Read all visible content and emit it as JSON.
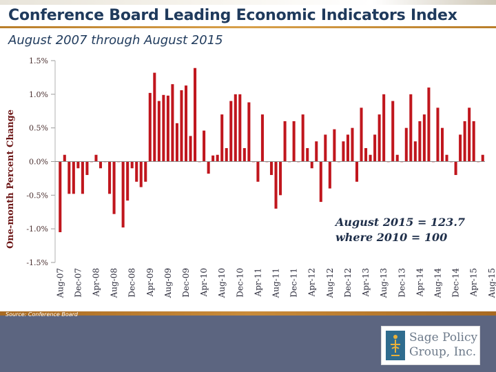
{
  "slide": {
    "title": "Conference Board Leading Economic Indicators Index",
    "subtitle": "August 2007 through August 2015",
    "source": "Source: Conference Board"
  },
  "logo": {
    "line1": "Sage Policy",
    "line2": "Group, Inc."
  },
  "colors": {
    "bar": "#c0161d",
    "title": "#1f3a5c",
    "footer": "#5c6580",
    "accent": "#c98b3a"
  },
  "chart_data": {
    "type": "bar",
    "title": "Conference Board Leading Economic Indicators Index",
    "xlabel": "",
    "ylabel": "One-month Percent Change",
    "ylim": [
      -1.5,
      1.5
    ],
    "yticks": [
      1.5,
      1.0,
      0.5,
      0.0,
      -0.5,
      -1.0,
      -1.5
    ],
    "ytick_labels": [
      "1.5%",
      "1.0%",
      "0.5%",
      "0.0%",
      "-0.5%",
      "-1.0%",
      "-1.5%"
    ],
    "grid": false,
    "x_tick_labels": [
      "Aug-07",
      "Dec-07",
      "Apr-08",
      "Aug-08",
      "Dec-08",
      "Apr-09",
      "Aug-09",
      "Dec-09",
      "Apr-10",
      "Aug-10",
      "Dec-10",
      "Apr-11",
      "Aug-11",
      "Dec-11",
      "Apr-12",
      "Aug-12",
      "Dec-12",
      "Apr-13",
      "Aug-13",
      "Dec-13",
      "Apr-14",
      "Aug-14",
      "Dec-14",
      "Apr-15",
      "Aug-15"
    ],
    "series": [
      {
        "name": "One-month percent change",
        "values": [
          -1.05,
          0.1,
          -0.48,
          -0.48,
          -0.1,
          -0.48,
          -0.2,
          0.0,
          0.1,
          -0.1,
          0.0,
          -0.48,
          -0.78,
          0.0,
          -0.98,
          -0.58,
          -0.1,
          -0.3,
          -0.38,
          -0.3,
          1.02,
          1.32,
          0.9,
          0.99,
          0.98,
          1.15,
          0.57,
          1.06,
          1.13,
          0.38,
          1.39,
          0.0,
          0.46,
          -0.18,
          0.09,
          0.1,
          0.7,
          0.2,
          0.9,
          1.0,
          1.0,
          0.2,
          0.88,
          0.0,
          -0.3,
          0.7,
          0.0,
          -0.2,
          -0.7,
          -0.5,
          0.6,
          0.0,
          0.6,
          0.0,
          0.7,
          0.2,
          -0.1,
          0.3,
          -0.6,
          0.4,
          -0.4,
          0.48,
          0.0,
          0.3,
          0.4,
          0.5,
          -0.3,
          0.8,
          0.2,
          0.1,
          0.4,
          0.7,
          1.0,
          0.0,
          0.9,
          0.1,
          0.0,
          0.5,
          1.0,
          0.3,
          0.6,
          0.7,
          1.1,
          0.0,
          0.8,
          0.5,
          0.1,
          0.0,
          -0.2,
          0.4,
          0.6,
          0.8,
          0.6,
          0.0,
          0.1
        ]
      }
    ],
    "annotations": [
      "August 2015 = 123.7",
      "where 2010 = 100"
    ]
  }
}
